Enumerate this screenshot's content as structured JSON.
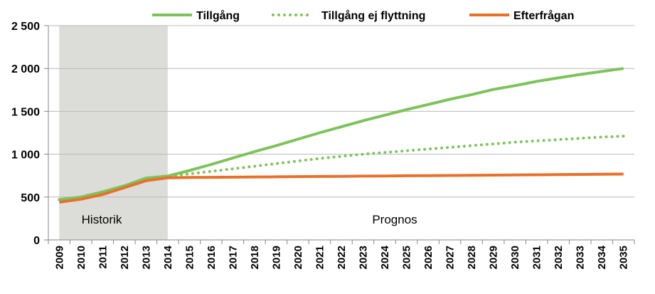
{
  "chart_data": {
    "type": "line",
    "x": [
      "2009",
      "2010",
      "2011",
      "2012",
      "2013",
      "2014",
      "2015",
      "2016",
      "2017",
      "2018",
      "2019",
      "2020",
      "2021",
      "2022",
      "2023",
      "2024",
      "2025",
      "2026",
      "2027",
      "2028",
      "2029",
      "2030",
      "2031",
      "2032",
      "2033",
      "2034",
      "2035"
    ],
    "series": [
      {
        "name": "Tillgång",
        "style": "solid",
        "color": "#7dc35b",
        "values": [
          470,
          500,
          560,
          630,
          720,
          745,
          810,
          880,
          955,
          1030,
          1100,
          1175,
          1250,
          1320,
          1390,
          1455,
          1520,
          1580,
          1640,
          1695,
          1755,
          1800,
          1850,
          1890,
          1930,
          1965,
          2000
        ]
      },
      {
        "name": "Tillgång ej flyttning",
        "style": "dotted",
        "color": "#7dc35b",
        "values": [
          470,
          500,
          560,
          630,
          720,
          745,
          770,
          800,
          830,
          860,
          890,
          920,
          950,
          975,
          1000,
          1020,
          1040,
          1060,
          1080,
          1100,
          1120,
          1140,
          1155,
          1170,
          1185,
          1200,
          1210
        ]
      },
      {
        "name": "Efterfrågan",
        "style": "solid",
        "color": "#e8712a",
        "values": [
          440,
          475,
          530,
          610,
          690,
          725,
          728,
          730,
          732,
          734,
          736,
          738,
          740,
          742,
          744,
          746,
          748,
          750,
          752,
          754,
          756,
          758,
          760,
          762,
          764,
          766,
          768
        ]
      }
    ],
    "ylim": [
      0,
      2500
    ],
    "yticks": [
      "0",
      "500",
      "1 000",
      "1 500",
      "2 000",
      "2 500"
    ],
    "grid": true,
    "legend_position": "top",
    "historic_band": {
      "from": "2009",
      "to": "2014",
      "color": "#dcdcd8"
    },
    "annotations": [
      "Historik",
      "Prognos"
    ]
  }
}
